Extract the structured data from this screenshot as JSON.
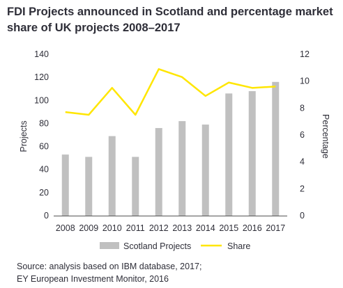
{
  "title_line1": "FDI Projects announced in Scotland and percentage market",
  "title_line2": "share of UK projects 2008–2017",
  "source_line1": "Source: analysis based on IBM database, 2017;",
  "source_line2": "EY European Investment Monitor, 2016",
  "colors": {
    "bar": "#c0c0c0",
    "line": "#ffe600",
    "text": "#2e2e38",
    "axis": "#555555"
  },
  "chart_data": {
    "type": "bar+line",
    "categories": [
      "2008",
      "2009",
      "2010",
      "2011",
      "2012",
      "2013",
      "2014",
      "2015",
      "2016",
      "2017"
    ],
    "series": [
      {
        "name": "Scotland Projects",
        "type": "bar",
        "axis": "left",
        "values": [
          53,
          51,
          69,
          51,
          76,
          82,
          79,
          106,
          108,
          116
        ]
      },
      {
        "name": "Share",
        "type": "line",
        "axis": "right",
        "values": [
          7.7,
          7.5,
          9.5,
          7.5,
          10.9,
          10.3,
          8.9,
          9.9,
          9.5,
          9.6
        ]
      }
    ],
    "ylabel_left": "Projects",
    "ylabel_right": "Percentage",
    "ylim_left": [
      0,
      140
    ],
    "yticks_left": [
      0,
      20,
      40,
      60,
      80,
      100,
      120,
      140
    ],
    "ylim_right": [
      0,
      12
    ],
    "yticks_right": [
      0,
      2,
      4,
      6,
      8,
      10,
      12
    ],
    "grid": false,
    "legend_position": "bottom"
  }
}
